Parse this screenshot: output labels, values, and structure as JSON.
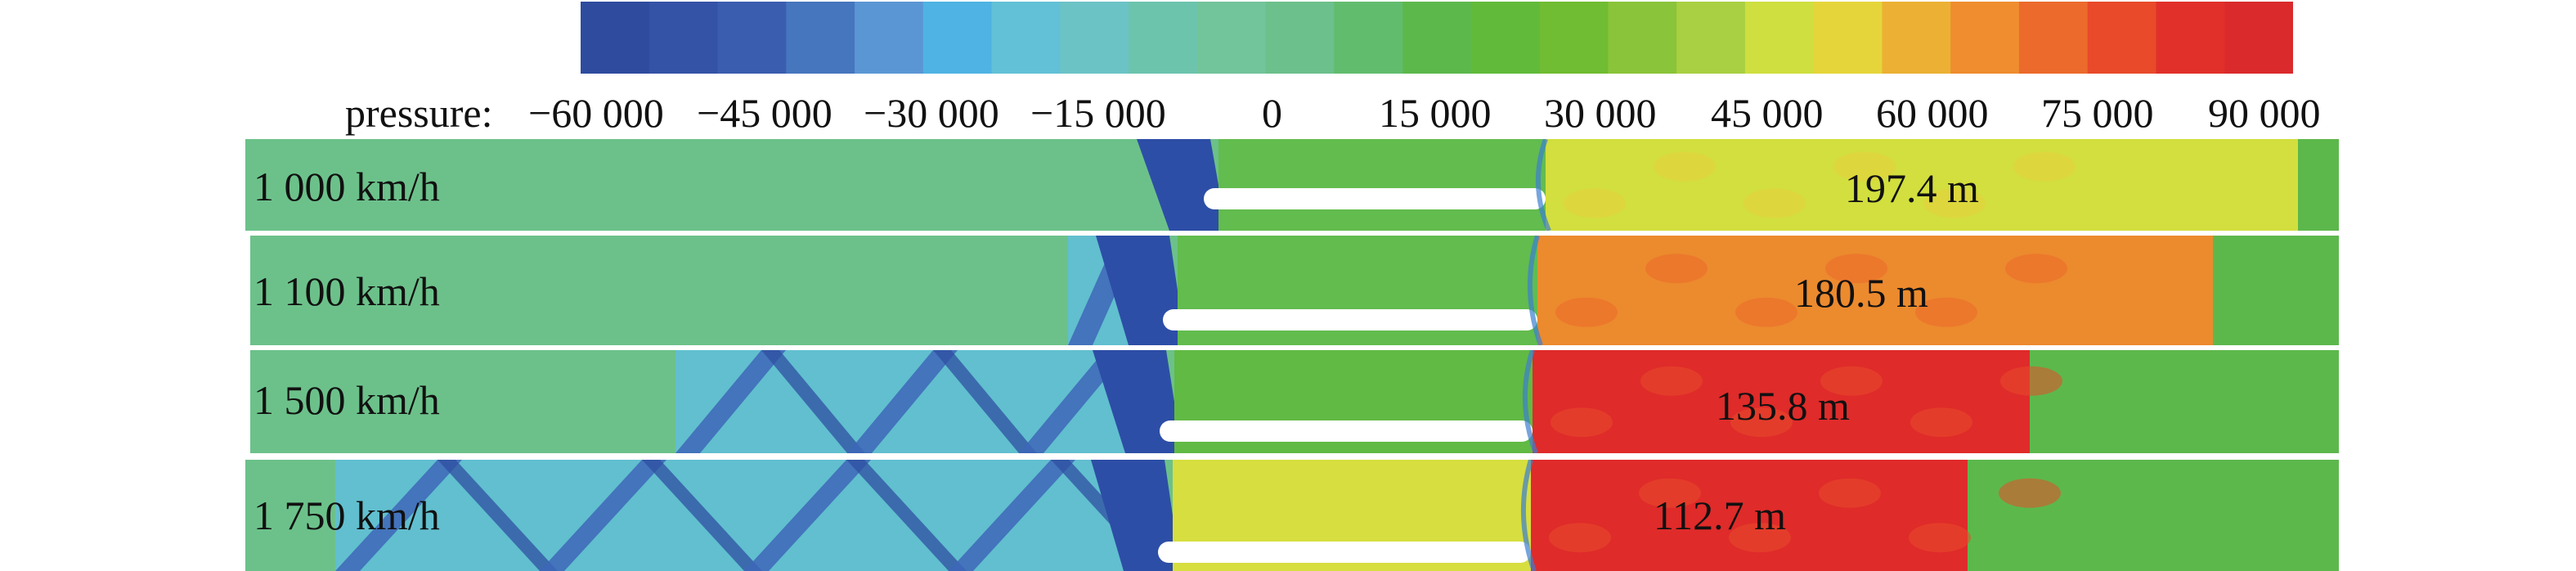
{
  "colorbar": {
    "label": "pressure:",
    "ticks": [
      "−60 000",
      "−45 000",
      "−30 000",
      "−15 000",
      "0",
      "15 000",
      "30 000",
      "45 000",
      "60 000",
      "75 000",
      "90 000"
    ],
    "colors": [
      "#2f4b9e",
      "#3452a6",
      "#3b5db0",
      "#4676be",
      "#5b96d4",
      "#4fb3e3",
      "#62c1d6",
      "#6bc3c6",
      "#6cc4ad",
      "#72c49a",
      "#6cc08b",
      "#62bc6e",
      "#5db84c",
      "#61ba3a",
      "#70bc32",
      "#8ac43a",
      "#a9d042",
      "#cedf3f",
      "#e5d53a",
      "#ecb134",
      "#ef8d2f",
      "#ec6a2c",
      "#e84a2a",
      "#e1302a",
      "#da2a2c"
    ]
  },
  "panels": [
    {
      "speed": "1 000 km/h",
      "distance": "197.4 m"
    },
    {
      "speed": "1 100 km/h",
      "distance": "180.5 m"
    },
    {
      "speed": "1 500 km/h",
      "distance": "135.8 m"
    },
    {
      "speed": "1 750 km/h",
      "distance": "112.7 m"
    }
  ]
}
